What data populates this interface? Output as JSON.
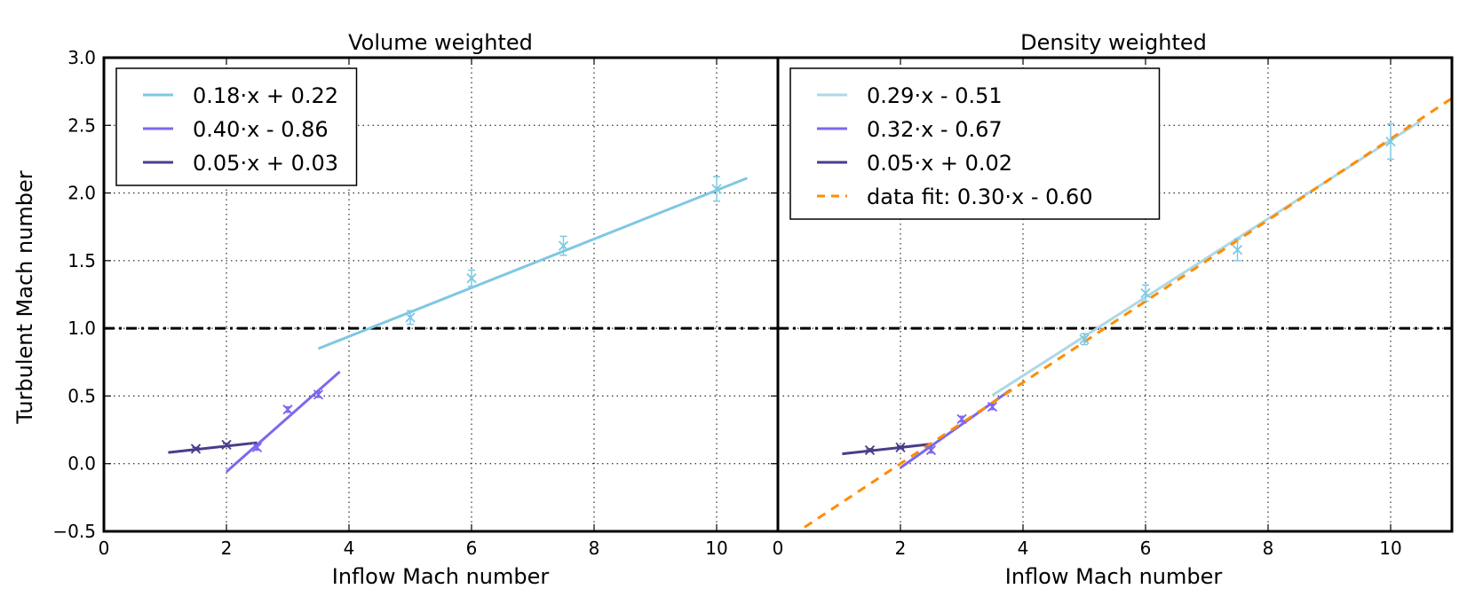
{
  "chart_data": {
    "type": "line",
    "ylabel": "Turbulent Mach number",
    "reference_line": {
      "y": 1.0,
      "style": "dash-dot",
      "color": "#000000"
    },
    "panels": [
      {
        "title": "Volume weighted",
        "xlabel": "Inflow Mach number",
        "xlim": [
          0,
          11
        ],
        "ylim": [
          -0.5,
          3.0
        ],
        "xticks": [
          "0",
          "2",
          "4",
          "6",
          "8",
          "10"
        ],
        "yticks": [
          "−0.5",
          "0.0",
          "0.5",
          "1.0",
          "1.5",
          "2.0",
          "2.5",
          "3.0"
        ],
        "grid": true,
        "legend_position": "top-left",
        "series": [
          {
            "name": "0.18·x + 0.22",
            "color": "#7ec8e3",
            "slope": 0.18,
            "intercept": 0.22,
            "x_range": [
              3.5,
              10.5
            ],
            "dashed": false
          },
          {
            "name": "0.40·x - 0.86",
            "color": "#7b68ee",
            "slope": 0.4,
            "intercept": -0.86,
            "x_range": [
              2.0,
              3.85
            ],
            "dashed": false
          },
          {
            "name": "0.05·x + 0.03",
            "color": "#483d8b",
            "slope": 0.05,
            "intercept": 0.03,
            "x_range": [
              1.05,
              2.5
            ],
            "dashed": false
          }
        ],
        "points": [
          {
            "x": 1.5,
            "y": 0.11,
            "err": 0.01,
            "color": "#483d8b"
          },
          {
            "x": 2.0,
            "y": 0.14,
            "err": 0.01,
            "color": "#483d8b"
          },
          {
            "x": 2.5,
            "y": 0.12,
            "err": 0.02,
            "color": "#7b68ee"
          },
          {
            "x": 3.0,
            "y": 0.4,
            "err": 0.02,
            "color": "#7b68ee"
          },
          {
            "x": 3.5,
            "y": 0.51,
            "err": 0.02,
            "color": "#7b68ee"
          },
          {
            "x": 5.0,
            "y": 1.08,
            "err": 0.05,
            "color": "#7ec8e3"
          },
          {
            "x": 6.0,
            "y": 1.37,
            "err": 0.06,
            "color": "#7ec8e3"
          },
          {
            "x": 7.5,
            "y": 1.61,
            "err": 0.07,
            "color": "#7ec8e3"
          },
          {
            "x": 10.0,
            "y": 2.03,
            "err": 0.09,
            "color": "#7ec8e3"
          }
        ]
      },
      {
        "title": "Density weighted",
        "xlabel": "Inflow Mach number",
        "xlim": [
          0,
          11
        ],
        "ylim": [
          -0.5,
          3.0
        ],
        "xticks": [
          "0",
          "2",
          "4",
          "6",
          "8",
          "10"
        ],
        "yticks": [],
        "grid": true,
        "legend_position": "top-left",
        "series": [
          {
            "name": "0.29·x - 0.51",
            "color": "#add8e6",
            "slope": 0.29,
            "intercept": -0.51,
            "x_range": [
              3.5,
              10.5
            ],
            "dashed": false
          },
          {
            "name": "0.32·x - 0.67",
            "color": "#7b68ee",
            "slope": 0.32,
            "intercept": -0.67,
            "x_range": [
              2.0,
              3.8
            ],
            "dashed": false
          },
          {
            "name": "0.05·x + 0.02",
            "color": "#483d8b",
            "slope": 0.05,
            "intercept": 0.02,
            "x_range": [
              1.05,
              2.5
            ],
            "dashed": false
          },
          {
            "name": "data fit: 0.30·x - 0.60",
            "color": "#ff8c00",
            "slope": 0.3,
            "intercept": -0.6,
            "x_range": [
              0.0,
              11.0
            ],
            "dashed": true
          }
        ],
        "points": [
          {
            "x": 1.5,
            "y": 0.1,
            "err": 0.01,
            "color": "#483d8b"
          },
          {
            "x": 2.0,
            "y": 0.12,
            "err": 0.01,
            "color": "#483d8b"
          },
          {
            "x": 2.5,
            "y": 0.1,
            "err": 0.02,
            "color": "#7b68ee"
          },
          {
            "x": 3.0,
            "y": 0.33,
            "err": 0.02,
            "color": "#7b68ee"
          },
          {
            "x": 3.5,
            "y": 0.42,
            "err": 0.02,
            "color": "#7b68ee"
          },
          {
            "x": 5.0,
            "y": 0.92,
            "err": 0.04,
            "color": "#7ec8e3"
          },
          {
            "x": 6.0,
            "y": 1.26,
            "err": 0.06,
            "color": "#7ec8e3"
          },
          {
            "x": 7.5,
            "y": 1.58,
            "err": 0.08,
            "color": "#7ec8e3"
          },
          {
            "x": 10.0,
            "y": 2.38,
            "err": 0.13,
            "color": "#7ec8e3"
          }
        ]
      }
    ]
  }
}
